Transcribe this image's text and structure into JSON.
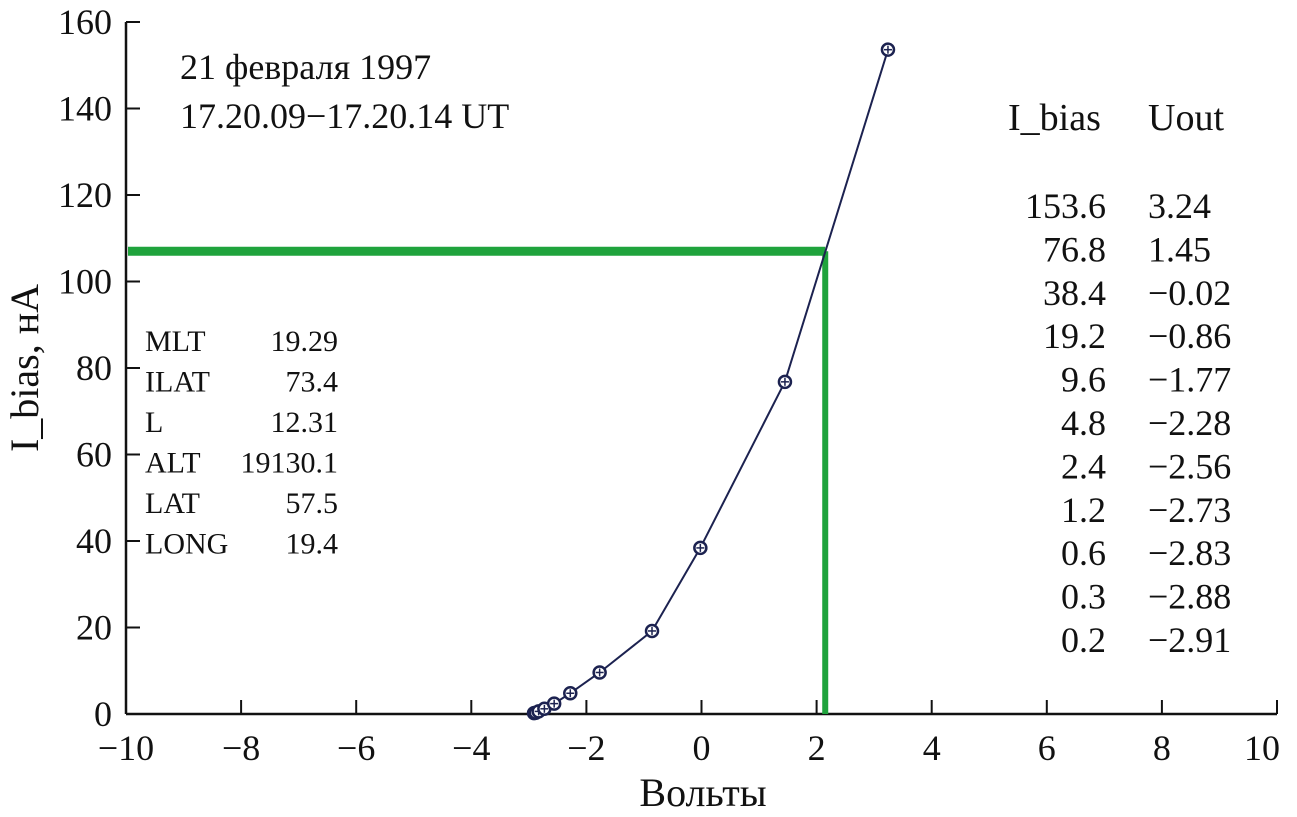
{
  "chart_data": {
    "type": "line",
    "xlabel": "Вольты",
    "ylabel": "I_bias, нА",
    "xlim": [
      -10,
      10
    ],
    "ylim": [
      0,
      160
    ],
    "x_ticks": [
      "−10",
      "−8",
      "−6",
      "−4",
      "−2",
      "0",
      "2",
      "4",
      "6",
      "8",
      "10"
    ],
    "y_ticks": [
      "0",
      "20",
      "40",
      "60",
      "80",
      "100",
      "120",
      "140",
      "160"
    ],
    "header": [
      "21 февраля 1997",
      "17.20.09−17.20.14 UT"
    ],
    "series": [
      {
        "points": [
          [
            -2.91,
            0.2
          ],
          [
            -2.88,
            0.3
          ],
          [
            -2.83,
            0.6
          ],
          [
            -2.73,
            1.2
          ],
          [
            -2.56,
            2.4
          ],
          [
            -2.28,
            4.8
          ],
          [
            -1.77,
            9.6
          ],
          [
            -0.86,
            19.2
          ],
          [
            -0.02,
            38.4
          ],
          [
            1.45,
            76.8
          ],
          [
            3.24,
            153.6
          ]
        ]
      }
    ],
    "crosshair": {
      "x": 2.15,
      "y": 107,
      "color": "#1fa33c"
    },
    "line_color": "#1c2250",
    "table": {
      "headers": [
        "I_bias",
        "Uout"
      ],
      "rows": [
        [
          "153.6",
          "3.24"
        ],
        [
          "76.8",
          "1.45"
        ],
        [
          "38.4",
          "−0.02"
        ],
        [
          "19.2",
          "−0.86"
        ],
        [
          "9.6",
          "−1.77"
        ],
        [
          "4.8",
          "−2.28"
        ],
        [
          "2.4",
          "−2.56"
        ],
        [
          "1.2",
          "−2.73"
        ],
        [
          "0.6",
          "−2.83"
        ],
        [
          "0.3",
          "−2.88"
        ],
        [
          "0.2",
          "−2.91"
        ]
      ]
    },
    "params": [
      {
        "name": "MLT",
        "value": "19.29"
      },
      {
        "name": "ILAT",
        "value": "73.4"
      },
      {
        "name": "L",
        "value": "12.31"
      },
      {
        "name": "ALT",
        "value": "19130.1"
      },
      {
        "name": "LAT",
        "value": "57.5"
      },
      {
        "name": "LONG",
        "value": "19.4"
      }
    ]
  }
}
